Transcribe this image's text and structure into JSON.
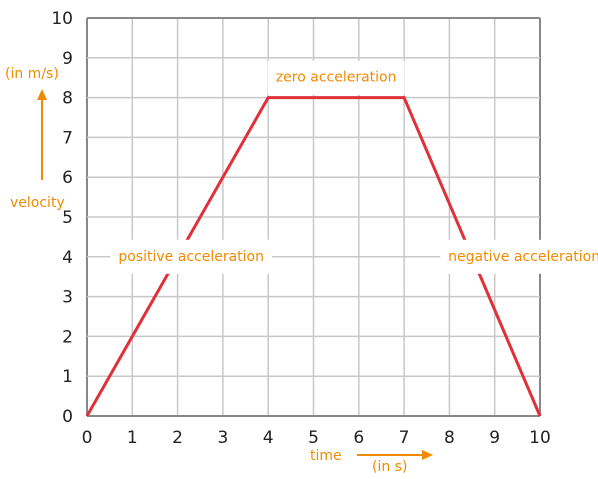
{
  "chart_data": {
    "type": "line",
    "x": [
      0,
      4,
      7,
      10
    ],
    "y": [
      0,
      8,
      8,
      0
    ],
    "xlim": [
      0,
      10
    ],
    "ylim": [
      0,
      10
    ],
    "x_ticks": [
      "0",
      "1",
      "2",
      "3",
      "4",
      "5",
      "6",
      "7",
      "8",
      "9",
      "10"
    ],
    "y_ticks": [
      "0",
      "1",
      "2",
      "3",
      "4",
      "5",
      "6",
      "7",
      "8",
      "9",
      "10"
    ],
    "grid": true,
    "ylabel": "velocity",
    "ylabel_unit": "(in m/s)",
    "xlabel": "time",
    "xlabel_unit": "(in s)",
    "annotations": [
      {
        "text": "zero acceleration",
        "x": 5.5,
        "y": 8.5
      },
      {
        "text": "positive acceleration",
        "x": 2.3,
        "y": 4.0
      },
      {
        "text": "negative acceleration",
        "x": 9.65,
        "y": 4.0
      }
    ],
    "colors": {
      "line": "#e0303a",
      "grid": "#c8c8c8",
      "axis": "#888888",
      "accent": "#f08a00"
    }
  }
}
